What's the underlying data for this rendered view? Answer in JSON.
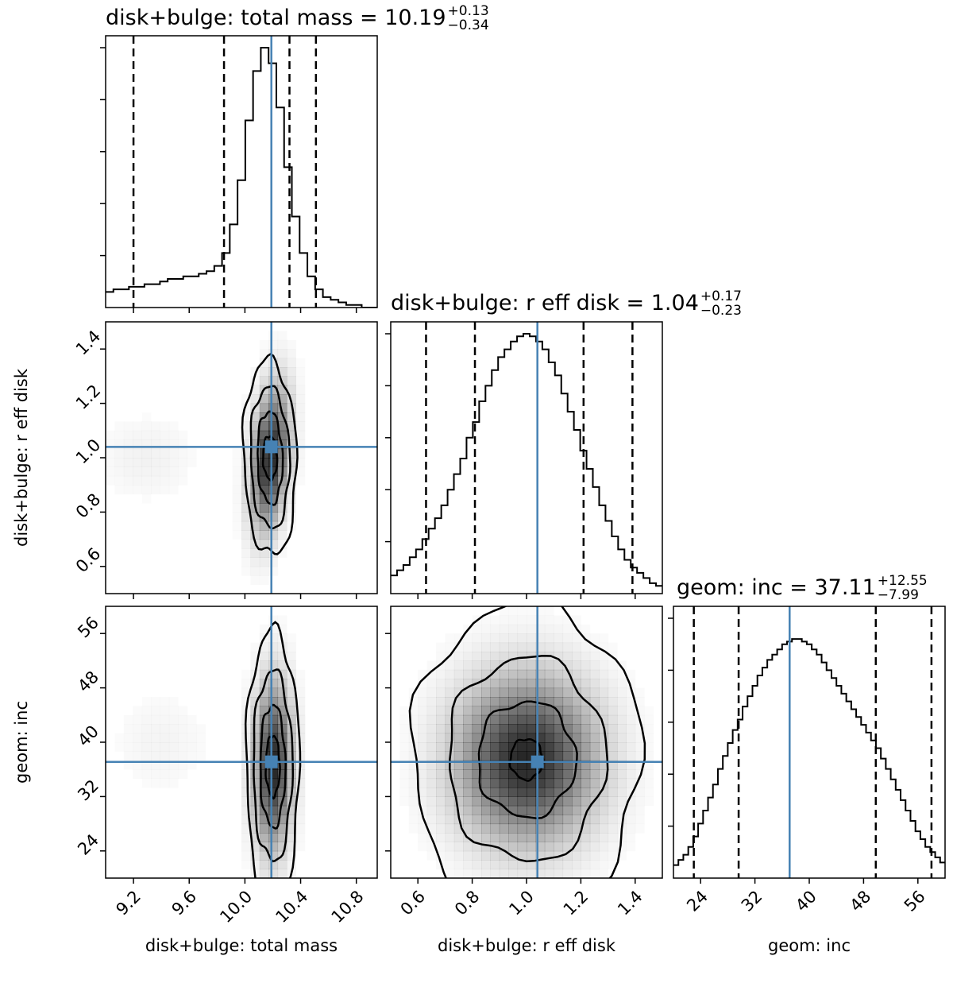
{
  "chart_data": {
    "type": "corner",
    "colors": {
      "truth": "#4682b4",
      "line": "#000000",
      "density": "#000000"
    },
    "parameters": [
      {
        "label": "disk+bulge: total mass",
        "range": [
          9.0,
          10.95
        ],
        "ticks": [
          9.2,
          9.6,
          10.0,
          10.4,
          10.8
        ],
        "best": 10.19,
        "quantile_lines": [
          9.2,
          9.85,
          10.32,
          10.51
        ],
        "title_main": "disk+bulge: total mass = 10.19",
        "title_plus": "+0.13",
        "title_minus": "−0.34"
      },
      {
        "label": "disk+bulge: r eff disk",
        "range": [
          0.5,
          1.5
        ],
        "ticks": [
          0.6,
          0.8,
          1.0,
          1.2,
          1.4
        ],
        "best": 1.04,
        "quantile_lines": [
          0.63,
          0.81,
          1.21,
          1.39
        ],
        "title_main": "disk+bulge: r eff disk = 1.04",
        "title_plus": "+0.17",
        "title_minus": "−0.23"
      },
      {
        "label": "geom: inc",
        "range": [
          20,
          60
        ],
        "ticks": [
          24,
          32,
          40,
          48,
          56
        ],
        "best": 37.11,
        "quantile_lines": [
          23,
          29.6,
          49.8,
          58
        ],
        "title_main": "geom: inc = 37.11",
        "title_plus": "+12.55",
        "title_minus": "−7.99"
      }
    ],
    "histograms": [
      {
        "values": [
          0.06,
          0.07,
          0.07,
          0.08,
          0.08,
          0.09,
          0.09,
          0.1,
          0.11,
          0.11,
          0.12,
          0.12,
          0.13,
          0.14,
          0.16,
          0.21,
          0.32,
          0.49,
          0.72,
          0.91,
          1.0,
          0.94,
          0.77,
          0.54,
          0.35,
          0.21,
          0.12,
          0.07,
          0.04,
          0.03,
          0.02,
          0.01,
          0.01,
          0.0,
          0.0
        ]
      },
      {
        "values": [
          0.07,
          0.09,
          0.11,
          0.14,
          0.17,
          0.21,
          0.25,
          0.29,
          0.34,
          0.4,
          0.46,
          0.52,
          0.6,
          0.66,
          0.74,
          0.8,
          0.86,
          0.91,
          0.94,
          0.97,
          0.99,
          1.0,
          0.99,
          0.97,
          0.94,
          0.89,
          0.84,
          0.77,
          0.7,
          0.63,
          0.55,
          0.48,
          0.41,
          0.34,
          0.28,
          0.22,
          0.17,
          0.13,
          0.1,
          0.08,
          0.06,
          0.04,
          0.03
        ]
      },
      {
        "values": [
          0.05,
          0.07,
          0.09,
          0.12,
          0.16,
          0.21,
          0.26,
          0.31,
          0.36,
          0.42,
          0.47,
          0.52,
          0.57,
          0.61,
          0.66,
          0.7,
          0.74,
          0.78,
          0.81,
          0.84,
          0.86,
          0.88,
          0.9,
          0.91,
          0.92,
          0.92,
          0.91,
          0.9,
          0.88,
          0.86,
          0.83,
          0.8,
          0.77,
          0.74,
          0.71,
          0.68,
          0.65,
          0.62,
          0.59,
          0.56,
          0.53,
          0.5,
          0.46,
          0.42,
          0.38,
          0.34,
          0.3,
          0.26,
          0.22,
          0.18,
          0.15,
          0.12,
          0.1,
          0.08,
          0.06
        ]
      }
    ],
    "joint_panels": [
      {
        "x_param": 0,
        "y_param": 1,
        "peak": [
          10.18,
          1.0
        ],
        "sigma": [
          0.09,
          0.17
        ],
        "correlation": 0.3,
        "tail": {
          "from": [
            9.3,
            1.0
          ],
          "weight": 0.06
        },
        "contours": [
          {
            "rx": 0.05,
            "ry": 0.08
          },
          {
            "rx": 0.09,
            "ry": 0.17
          },
          {
            "rx": 0.14,
            "ry": 0.26
          },
          {
            "rx": 0.19,
            "ry": 0.36
          }
        ]
      },
      {
        "x_param": 0,
        "y_param": 2,
        "peak": [
          10.2,
          36.5
        ],
        "sigma": [
          0.09,
          8.0
        ],
        "correlation": 0.05,
        "tail": {
          "from": [
            9.4,
            40.0
          ],
          "weight": 0.05
        },
        "contours": [
          {
            "rx": 0.05,
            "ry": 4.5
          },
          {
            "rx": 0.09,
            "ry": 9.0
          },
          {
            "rx": 0.14,
            "ry": 14.0
          },
          {
            "rx": 0.19,
            "ry": 20.0
          }
        ]
      },
      {
        "x_param": 1,
        "y_param": 2,
        "peak": [
          1.0,
          37.5
        ],
        "sigma": [
          0.17,
          8.0
        ],
        "correlation": 0.0,
        "tail": null,
        "contours": [
          {
            "rx": 0.06,
            "ry": 3.0
          },
          {
            "rx": 0.18,
            "ry": 8.5
          },
          {
            "rx": 0.29,
            "ry": 15.0
          },
          {
            "rx": 0.42,
            "ry": 23.0
          }
        ]
      }
    ]
  }
}
